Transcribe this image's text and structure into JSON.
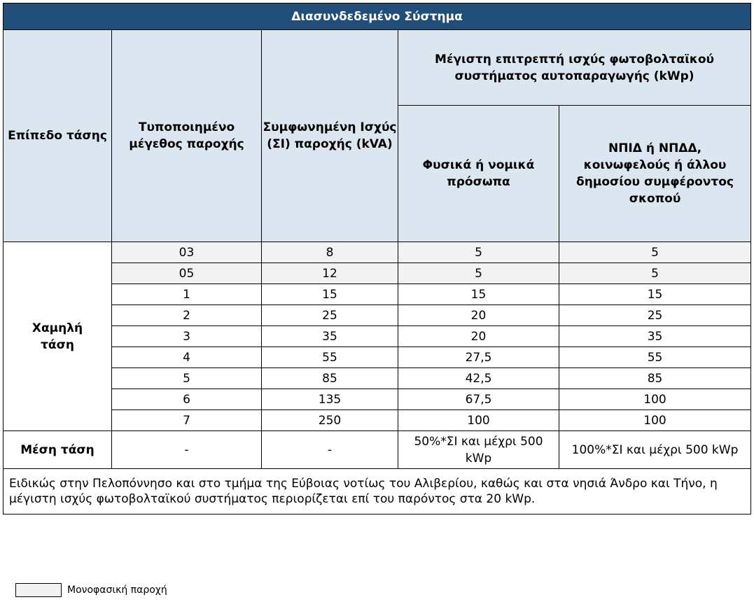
{
  "table": {
    "title": "Διασυνδεδεμένο Σύστημα",
    "headers": {
      "voltage_level": "Επίπεδο τάσης",
      "standard_size": "Τυποποιημένο μέγεθος παροχής",
      "agreed_power": "Συμφωνημένη Ισχύς (ΣΙ) παροχής (kVA)",
      "max_power_group": "Μέγιστη επιτρεπτή ισχύς φωτοβολταϊκού συστήματος αυτοπαραγωγής (kWp)",
      "persons": "Φυσικά ή νομικά πρόσωπα",
      "public": "ΝΠΙΔ ή ΝΠΔΔ, κοινωφελούς ή άλλου δημοσίου συμφέροντος σκοπού"
    },
    "low_voltage_label": "Χαμηλή τάση",
    "rows": [
      {
        "size": "03",
        "agreed": "8",
        "persons": "5",
        "public": "5"
      },
      {
        "size": "05",
        "agreed": "12",
        "persons": "5",
        "public": "5"
      },
      {
        "size": "1",
        "agreed": "15",
        "persons": "15",
        "public": "15"
      },
      {
        "size": "2",
        "agreed": "25",
        "persons": "20",
        "public": "25"
      },
      {
        "size": "3",
        "agreed": "35",
        "persons": "20",
        "public": "35"
      },
      {
        "size": "4",
        "agreed": "55",
        "persons": "27,5",
        "public": "55"
      },
      {
        "size": "5",
        "agreed": "85",
        "persons": "42,5",
        "public": "85"
      },
      {
        "size": "6",
        "agreed": "135",
        "persons": "67,5",
        "public": "100"
      },
      {
        "size": "7",
        "agreed": "250",
        "persons": "100",
        "public": "100"
      }
    ],
    "medium_voltage": {
      "label": "Μέση τάση",
      "size": "-",
      "agreed": "-",
      "persons": "50%*ΣΙ και μέχρι 500 kWp",
      "public": "100%*ΣΙ και μέχρι 500 kWp"
    },
    "note": "Ειδικώς στην Πελοπόννησο  και στο τμήμα της Εύβοιας νοτίως του Αλιβερίου, καθώς και στα νησιά  Άνδρο και Τήνο, η μέγιστη ισχύς φωτοβολταϊκού συστήματος περιορίζεται επί του παρόντος στα 20 kWp."
  },
  "legend": {
    "label": "Μονοφασική παροχή",
    "swatch_color": "#f2f2f2"
  }
}
